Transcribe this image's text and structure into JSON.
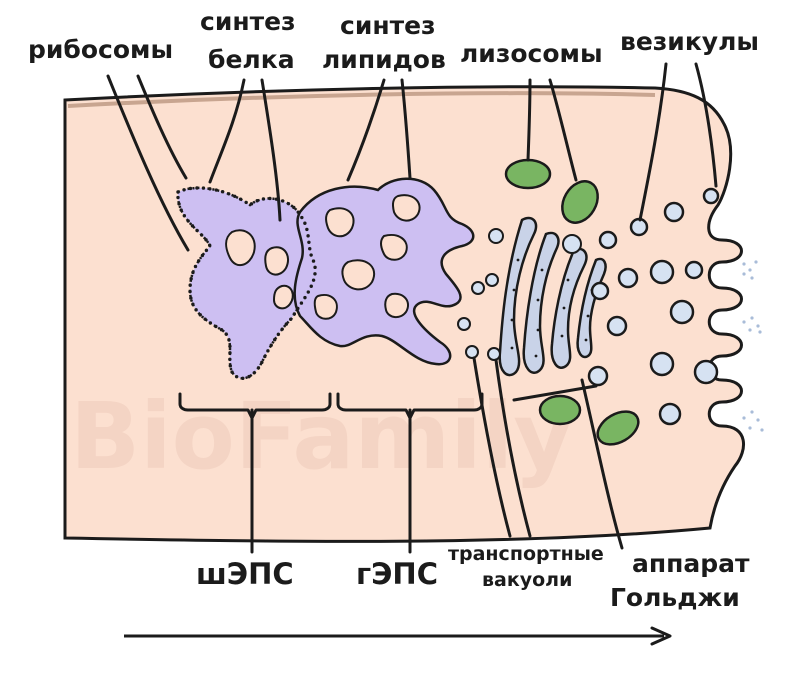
{
  "labels": {
    "ribosomes": "рибосомы",
    "protein_synthesis_1": "синтез",
    "protein_synthesis_2": "белка",
    "lipid_synthesis_1": "синтез",
    "lipid_synthesis_2": "липидов",
    "lysosomes": "лизосомы",
    "vesicles": "везикулы",
    "rough_er": "шЭПС",
    "smooth_er": "гЭПС",
    "transport_vacuoles_1": "транспортные",
    "transport_vacuoles_2": "вакуоли",
    "golgi_1": "аппарат",
    "golgi_2": "Гольджи"
  },
  "watermark": "BioFamily",
  "colors": {
    "cytoplasm": "#fce0d0",
    "membrane": "#c8a590",
    "er": "#cdbff2",
    "golgi": "#c9d3e8",
    "lysosome": "#79b562",
    "vesicle": "#d6e2f2",
    "outline": "#1b1b1b"
  }
}
